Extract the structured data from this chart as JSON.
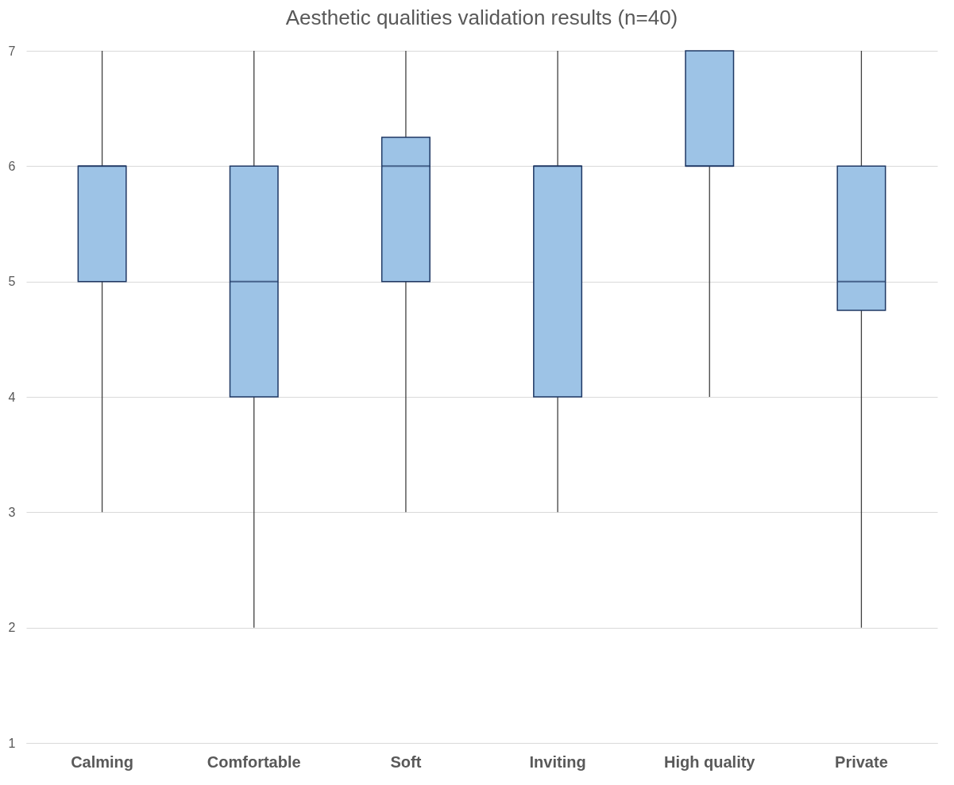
{
  "chart_data": {
    "type": "box",
    "title": "Aesthetic qualities validation results (n=40)",
    "categories": [
      "Calming",
      "Comfortable",
      "Soft",
      "Inviting",
      "High quality",
      "Private"
    ],
    "series": [
      {
        "color": "#9dc3e6",
        "boxes": [
          {
            "low": 3,
            "q1": 5,
            "median": 6,
            "q3": 6,
            "high": 7
          },
          {
            "low": 2,
            "q1": 4,
            "median": 5,
            "q3": 6,
            "high": 7
          },
          {
            "low": 3,
            "q1": 5,
            "median": 6,
            "q3": 6.25,
            "high": 7
          },
          {
            "low": 3,
            "q1": 4,
            "median": 6,
            "q3": 6,
            "high": 7
          },
          {
            "low": 4,
            "q1": 6,
            "median": 6,
            "q3": 7,
            "high": 7
          },
          {
            "low": 2,
            "q1": 4.75,
            "median": 5,
            "q3": 6,
            "high": 7
          }
        ]
      }
    ],
    "ylim": [
      1,
      7
    ],
    "yticks": [
      1,
      2,
      3,
      4,
      5,
      6,
      7
    ],
    "grid": "y"
  }
}
